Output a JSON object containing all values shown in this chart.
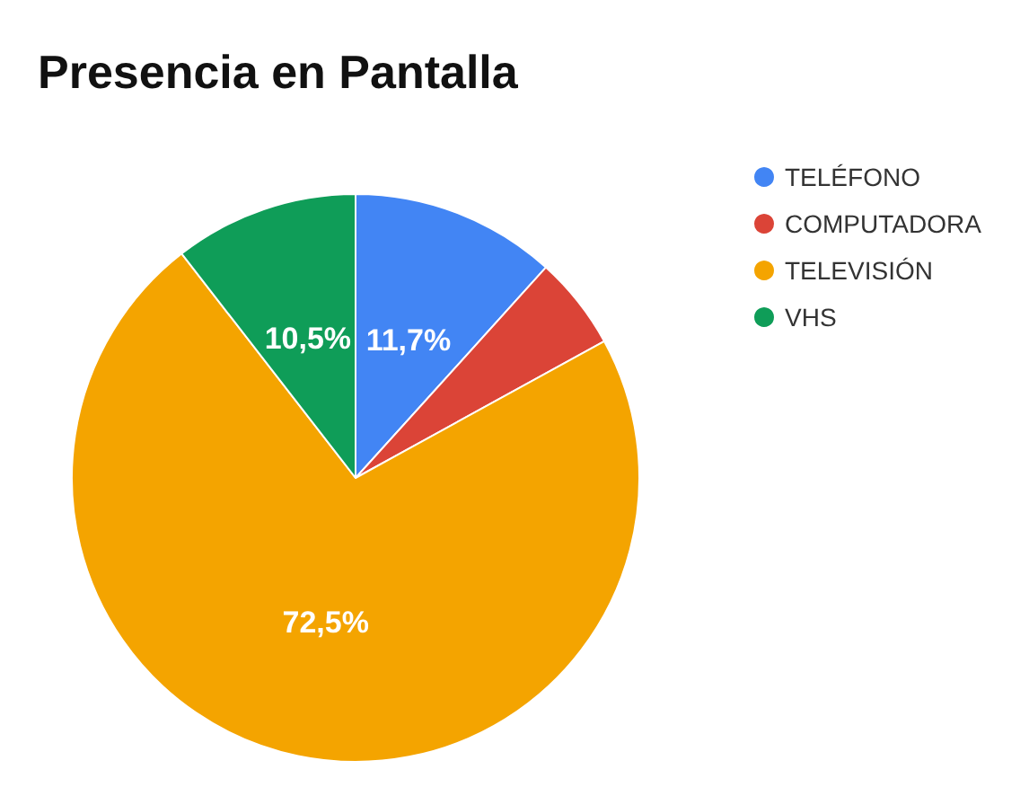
{
  "chart_data": {
    "type": "pie",
    "title": "Presencia en Pantalla",
    "categories": [
      "TELÉFONO",
      "COMPUTADORA",
      "TELEVISIÓN",
      "VHS"
    ],
    "values": [
      11.7,
      5.3,
      72.5,
      10.5
    ],
    "colors": [
      "#4285f4",
      "#db4437",
      "#f4a400",
      "#0f9d58"
    ],
    "value_labels": [
      "11,7%",
      null,
      "72,5%",
      "10,5%"
    ],
    "legend": "top right"
  }
}
